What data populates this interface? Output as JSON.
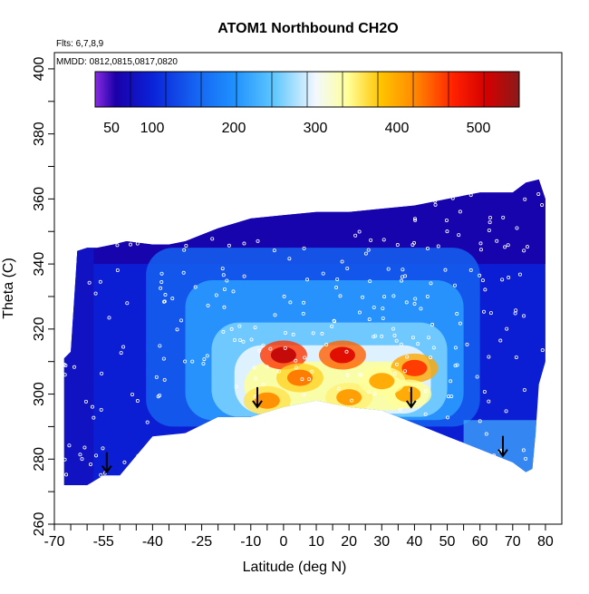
{
  "chart_data": {
    "type": "heatmap",
    "title": "ATOM1 Northbound CH2O",
    "annotations": [
      "Flts: 6,7,8,9",
      "MMDD: 0812,0815,0817,0820"
    ],
    "xlabel": "Latitude (deg N)",
    "ylabel": "Theta (C)",
    "xlim": [
      -70,
      85
    ],
    "ylim": [
      260,
      405
    ],
    "x_ticks": [
      -70,
      -55,
      -40,
      -25,
      -10,
      0,
      10,
      20,
      30,
      40,
      50,
      60,
      70,
      80
    ],
    "y_ticks": [
      260,
      280,
      300,
      320,
      340,
      360,
      380,
      400
    ],
    "colorbar": {
      "range": [
        30,
        550
      ],
      "tick_values": [
        50,
        100,
        200,
        300,
        400,
        500
      ],
      "stops": [
        {
          "v": 30,
          "c": "#8a2be2"
        },
        {
          "v": 55,
          "c": "#1a00a8"
        },
        {
          "v": 100,
          "c": "#0a22d8"
        },
        {
          "v": 150,
          "c": "#1560f0"
        },
        {
          "v": 200,
          "c": "#1e90ff"
        },
        {
          "v": 250,
          "c": "#60c8ff"
        },
        {
          "v": 300,
          "c": "#f2f8ff"
        },
        {
          "v": 340,
          "c": "#ffff99"
        },
        {
          "v": 380,
          "c": "#ffc400"
        },
        {
          "v": 420,
          "c": "#ff8c00"
        },
        {
          "v": 470,
          "c": "#ff2000"
        },
        {
          "v": 510,
          "c": "#d40000"
        },
        {
          "v": 550,
          "c": "#8b1a1a"
        }
      ]
    },
    "field_outline": {
      "latitude": [
        -67,
        -65,
        -63,
        -60,
        -57,
        -52,
        -48,
        -40,
        -35,
        -30,
        -20,
        -10,
        0,
        10,
        20,
        30,
        40,
        50,
        60,
        70,
        74,
        78,
        80,
        80,
        78,
        77,
        76,
        74,
        70,
        60,
        50,
        40,
        30,
        20,
        10,
        0,
        -10,
        -20,
        -30,
        -40,
        -50,
        -55,
        -60,
        -63,
        -67
      ],
      "theta": [
        311,
        313,
        344,
        345,
        345,
        346,
        347,
        346,
        346,
        347,
        351,
        354,
        355,
        356,
        356,
        357,
        358,
        360,
        362,
        362,
        365,
        366,
        360,
        310,
        303,
        288,
        277,
        276,
        279,
        283,
        287,
        291,
        295,
        296,
        298,
        296,
        293,
        293,
        288,
        287,
        275,
        275,
        272,
        272,
        272
      ]
    },
    "hotspots": [
      {
        "latitude": 0,
        "theta": 312,
        "value": 520
      },
      {
        "latitude": 18,
        "theta": 312,
        "value": 500
      },
      {
        "latitude": 40,
        "theta": 308,
        "value": 460
      },
      {
        "latitude": -5,
        "theta": 298,
        "value": 420
      },
      {
        "latitude": 20,
        "theta": 299,
        "value": 410
      },
      {
        "latitude": 38,
        "theta": 300,
        "value": 400
      },
      {
        "latitude": 5,
        "theta": 305,
        "value": 430
      },
      {
        "latitude": 30,
        "theta": 304,
        "value": 400
      }
    ],
    "tropopause_arrows": [
      {
        "latitude": -54,
        "theta": 276
      },
      {
        "latitude": -8,
        "theta": 296
      },
      {
        "latitude": 39,
        "theta": 296
      },
      {
        "latitude": 67,
        "theta": 281
      }
    ]
  }
}
